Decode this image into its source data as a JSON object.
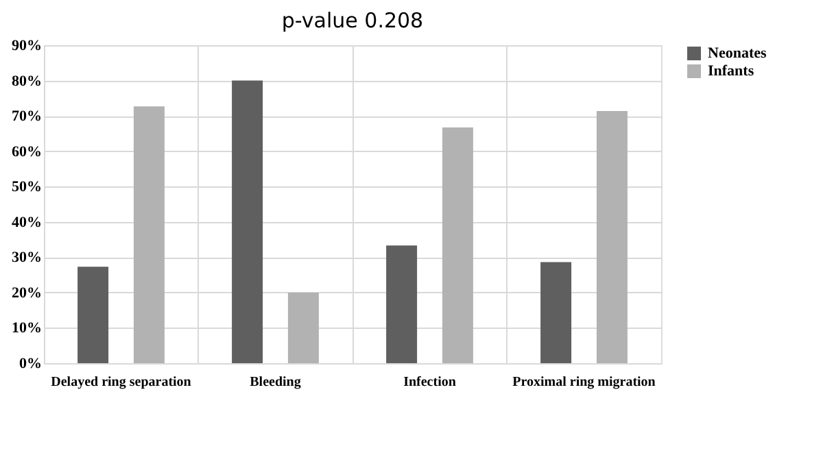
{
  "chart_data": {
    "type": "bar",
    "title": "p-value 0.208",
    "categories": [
      "Delayed ring separation",
      "Bleeding",
      "Infection",
      "Proximal ring migration"
    ],
    "series": [
      {
        "name": "Neonates",
        "color": "#5f5f5f",
        "values": [
          27.3,
          80,
          33.3,
          28.6
        ]
      },
      {
        "name": "Infants",
        "color": "#b2b2b2",
        "values": [
          72.7,
          20,
          66.7,
          71.4
        ]
      }
    ],
    "ylim": [
      0,
      90
    ],
    "yticks": [
      {
        "value": 0,
        "label": "0%"
      },
      {
        "value": 10,
        "label": "10%"
      },
      {
        "value": 20,
        "label": "20%"
      },
      {
        "value": 30,
        "label": "30%"
      },
      {
        "value": 40,
        "label": "40%"
      },
      {
        "value": 50,
        "label": "50%"
      },
      {
        "value": 60,
        "label": "60%"
      },
      {
        "value": 70,
        "label": "70%"
      },
      {
        "value": 80,
        "label": "80%"
      },
      {
        "value": 90,
        "label": "90%"
      }
    ],
    "grid": true,
    "legend": "right"
  }
}
